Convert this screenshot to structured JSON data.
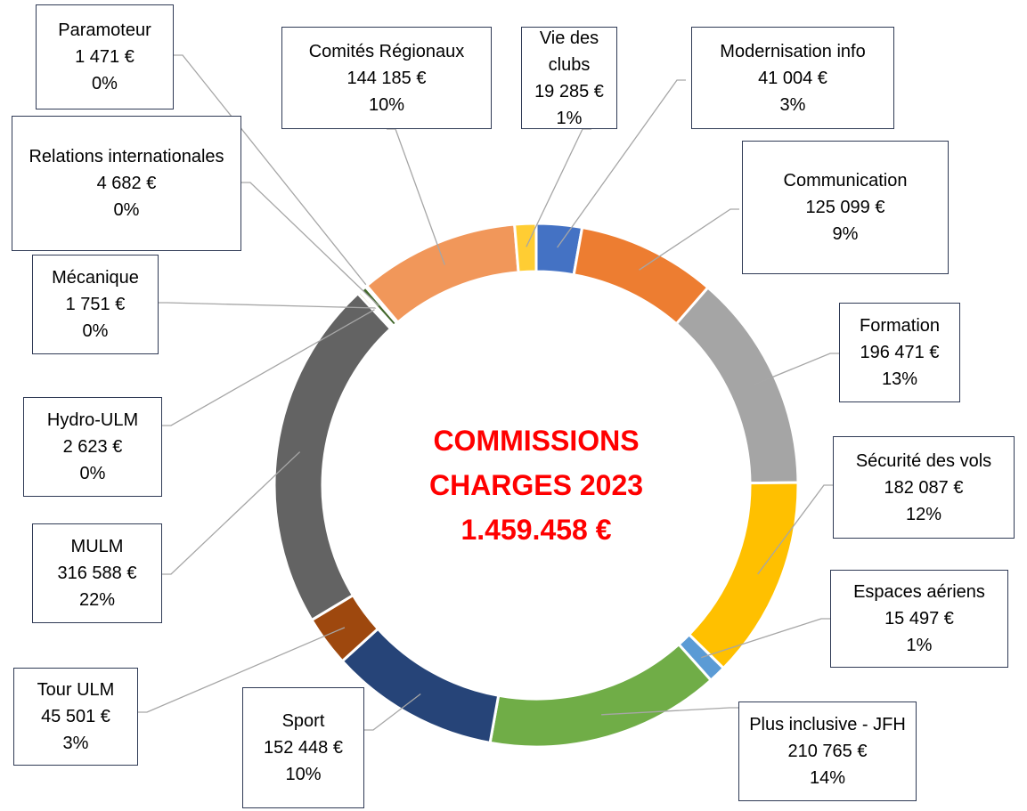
{
  "chart_data": {
    "type": "donut",
    "title_lines": [
      "COMMISSIONS",
      "CHARGES 2023",
      "1.459.458 €"
    ],
    "categories": [
      "Modernisation info",
      "Communication",
      "Formation",
      "Sécurité des vols",
      "Espaces aériens",
      "Plus inclusive - JFH",
      "Sport",
      "Tour ULM",
      "MULM",
      "Hydro-ULM",
      "Mécanique",
      "Relations internationales",
      "Paramoteur",
      "Comités Régionaux",
      "Vie des clubs"
    ],
    "values": [
      41004,
      125099,
      196471,
      182087,
      15497,
      210765,
      152448,
      45501,
      316588,
      2623,
      1751,
      4682,
      1471,
      144185,
      19285
    ],
    "value_labels": [
      "41 004 €",
      "125 099 €",
      "196 471 €",
      "182 087 €",
      "15 497 €",
      "210 765 €",
      "152 448 €",
      "45 501 €",
      "316 588 €",
      "2 623 €",
      "1 751 €",
      "4 682 €",
      "1 471 €",
      "144 185 €",
      "19 285 €"
    ],
    "percent_labels": [
      "3%",
      "9%",
      "13%",
      "12%",
      "1%",
      "14%",
      "10%",
      "3%",
      "22%",
      "0%",
      "0%",
      "0%",
      "0%",
      "10%",
      "1%"
    ],
    "colors": [
      "#4472c4",
      "#ed7d31",
      "#a5a5a5",
      "#ffc000",
      "#5b9bd5",
      "#70ad47",
      "#264478",
      "#9e480e",
      "#636363",
      "#997300",
      "#255e91",
      "#43682b",
      "#698ed0",
      "#f1975a",
      "#ffcd33"
    ]
  }
}
